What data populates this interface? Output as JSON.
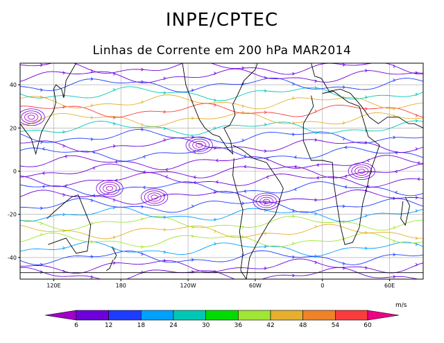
{
  "header": {
    "title": "INPE/CPTEC",
    "subtitle": "Linhas de Corrente em 200 hPa MAR2014"
  },
  "map": {
    "type": "streamlines",
    "level": "200 hPa",
    "lon_range": [
      90,
      450
    ],
    "lat_range": [
      -50,
      50
    ],
    "lat_ticks": [
      {
        "value": 40,
        "label": "40"
      },
      {
        "value": 20,
        "label": "20"
      },
      {
        "value": 0,
        "label": "0"
      },
      {
        "value": -20,
        "label": "-20"
      },
      {
        "value": -40,
        "label": "-40"
      }
    ],
    "lon_ticks": [
      {
        "value": 120,
        "label": "120E"
      },
      {
        "value": 180,
        "label": "180"
      },
      {
        "value": 240,
        "label": "120W"
      },
      {
        "value": 300,
        "label": "60W"
      },
      {
        "value": 360,
        "label": "0"
      },
      {
        "value": 420,
        "label": "60E"
      }
    ],
    "grid": true,
    "gridline_color": "#a0a0a0",
    "coastline_color": "#000000"
  },
  "colorbar": {
    "unit": "m/s",
    "labels": [
      "6",
      "12",
      "18",
      "24",
      "30",
      "36",
      "42",
      "48",
      "54",
      "60"
    ],
    "colors": [
      "#a000c8",
      "#6e00dc",
      "#1e3cff",
      "#00a0ff",
      "#00c8b4",
      "#00dc00",
      "#a0e632",
      "#e6af2d",
      "#f08228",
      "#fa3c3c",
      "#f00082"
    ]
  }
}
